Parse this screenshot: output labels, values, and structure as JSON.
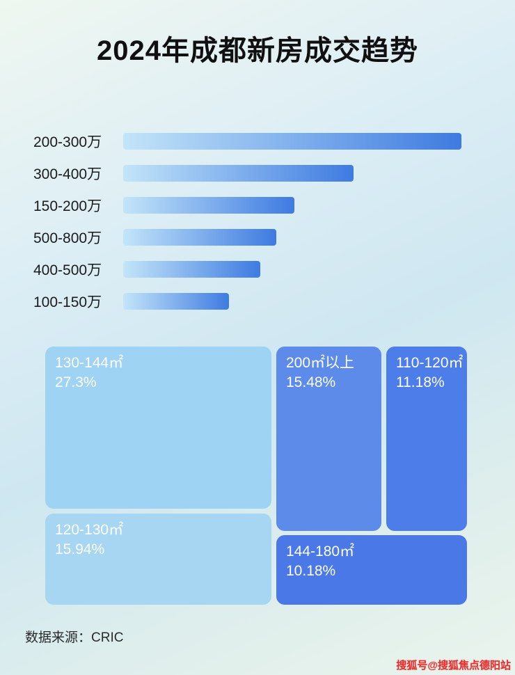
{
  "title": "2024年成都新房成交趋势",
  "footer": {
    "source": "数据来源：CRIC"
  },
  "watermark": "搜狐号@搜狐焦点德阳站",
  "chart_data": [
    {
      "type": "bar",
      "orientation": "horizontal",
      "categories": [
        "200-300万",
        "300-400万",
        "150-200万",
        "500-800万",
        "400-500万",
        "100-150万"
      ],
      "values": [
        485,
        330,
        245,
        220,
        197,
        152
      ],
      "value_note": "relative bar lengths; no numeric axis or data labels shown",
      "bar_gradient": [
        "#c3e5f9",
        "#3e7be1"
      ],
      "xlabel": "",
      "ylabel": "",
      "legend": "none",
      "grid": false
    },
    {
      "type": "treemap",
      "blocks": [
        {
          "label": "130-144㎡",
          "value": 27.3,
          "value_label": "27.3%",
          "color": "#9ed3f4"
        },
        {
          "label": "200㎡以上",
          "value": 15.48,
          "value_label": "15.48%",
          "color": "#5d8bea"
        },
        {
          "label": "110-120㎡",
          "value": 11.18,
          "value_label": "11.18%",
          "color": "#4c7de8"
        },
        {
          "label": "120-130㎡",
          "value": 15.94,
          "value_label": "15.94%",
          "color": "#a7d6f2"
        },
        {
          "label": "144-180㎡",
          "value": 10.18,
          "value_label": "10.18%",
          "color": "#4a79e7"
        }
      ]
    }
  ]
}
